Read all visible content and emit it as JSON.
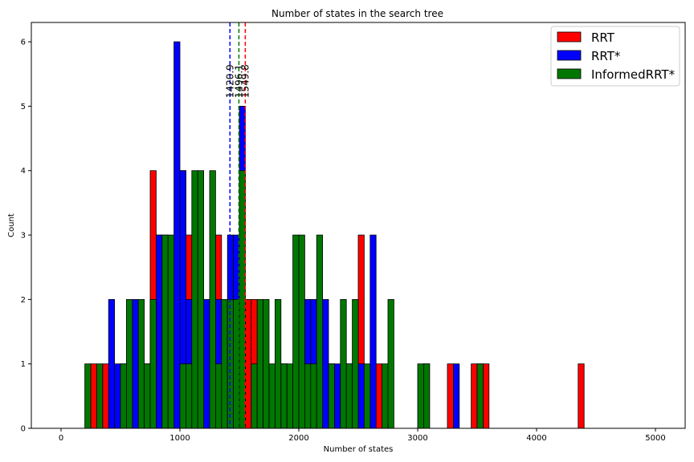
{
  "chart_data": {
    "type": "bar",
    "title": "Number of states in the search tree",
    "xlabel": "Number of states",
    "ylabel": "Count",
    "xlim": [
      -250,
      5250
    ],
    "ylim": [
      0,
      6.3
    ],
    "xticks": [
      0,
      1000,
      2000,
      3000,
      4000,
      5000
    ],
    "yticks": [
      0,
      1,
      2,
      3,
      4,
      5,
      6
    ],
    "bin_width": 50,
    "grid": false,
    "legend_position": "top-right",
    "series": [
      {
        "name": "RRT",
        "color": "#ff0000",
        "bars": [
          [
            250,
            1
          ],
          [
            350,
            1
          ],
          [
            750,
            4
          ],
          [
            800,
            3
          ],
          [
            1000,
            4
          ],
          [
            1050,
            3
          ],
          [
            1100,
            2
          ],
          [
            1200,
            2
          ],
          [
            1300,
            3
          ],
          [
            1400,
            2
          ],
          [
            1550,
            2
          ],
          [
            1600,
            2
          ],
          [
            2000,
            2
          ],
          [
            2150,
            2
          ],
          [
            2250,
            1
          ],
          [
            2350,
            1
          ],
          [
            2450,
            1
          ],
          [
            2500,
            3
          ],
          [
            2650,
            1
          ],
          [
            3050,
            1
          ],
          [
            3250,
            1
          ],
          [
            3450,
            1
          ],
          [
            3500,
            1
          ],
          [
            3550,
            1
          ],
          [
            4350,
            1
          ]
        ]
      },
      {
        "name": "RRT*",
        "color": "#0000ff",
        "bars": [
          [
            400,
            2
          ],
          [
            450,
            1
          ],
          [
            500,
            1
          ],
          [
            600,
            2
          ],
          [
            700,
            1
          ],
          [
            750,
            2
          ],
          [
            800,
            3
          ],
          [
            850,
            3
          ],
          [
            900,
            1
          ],
          [
            950,
            6
          ],
          [
            1000,
            4
          ],
          [
            1050,
            2
          ],
          [
            1100,
            2
          ],
          [
            1150,
            3
          ],
          [
            1200,
            2
          ],
          [
            1300,
            2
          ],
          [
            1350,
            1
          ],
          [
            1400,
            3
          ],
          [
            1450,
            3
          ],
          [
            1500,
            5
          ],
          [
            1700,
            1
          ],
          [
            1850,
            1
          ],
          [
            2050,
            2
          ],
          [
            2100,
            2
          ],
          [
            2200,
            2
          ],
          [
            2300,
            1
          ],
          [
            2400,
            1
          ],
          [
            2500,
            1
          ],
          [
            2600,
            3
          ],
          [
            3300,
            1
          ]
        ]
      },
      {
        "name": "InformedRRT*",
        "color": "#007700",
        "bars": [
          [
            200,
            1
          ],
          [
            300,
            1
          ],
          [
            500,
            1
          ],
          [
            550,
            2
          ],
          [
            650,
            2
          ],
          [
            700,
            1
          ],
          [
            750,
            2
          ],
          [
            850,
            3
          ],
          [
            900,
            3
          ],
          [
            1000,
            1
          ],
          [
            1050,
            1
          ],
          [
            1100,
            4
          ],
          [
            1150,
            4
          ],
          [
            1250,
            4
          ],
          [
            1300,
            1
          ],
          [
            1350,
            2
          ],
          [
            1400,
            2
          ],
          [
            1450,
            2
          ],
          [
            1500,
            4
          ],
          [
            1600,
            1
          ],
          [
            1650,
            2
          ],
          [
            1700,
            2
          ],
          [
            1750,
            1
          ],
          [
            1800,
            2
          ],
          [
            1850,
            1
          ],
          [
            1900,
            1
          ],
          [
            1950,
            3
          ],
          [
            2000,
            3
          ],
          [
            2050,
            1
          ],
          [
            2100,
            1
          ],
          [
            2150,
            3
          ],
          [
            2250,
            1
          ],
          [
            2350,
            2
          ],
          [
            2400,
            1
          ],
          [
            2450,
            2
          ],
          [
            2550,
            1
          ],
          [
            2700,
            1
          ],
          [
            2750,
            2
          ],
          [
            3000,
            1
          ],
          [
            3050,
            1
          ],
          [
            3500,
            1
          ]
        ]
      }
    ],
    "vlines": [
      {
        "value": 1420.9,
        "label": "1420.9",
        "color": "#0000ff"
      },
      {
        "value": 1496.1,
        "label": "1496.1",
        "color": "#007700"
      },
      {
        "value": 1549.8,
        "label": "1549.8",
        "color": "#ff0000"
      }
    ]
  }
}
